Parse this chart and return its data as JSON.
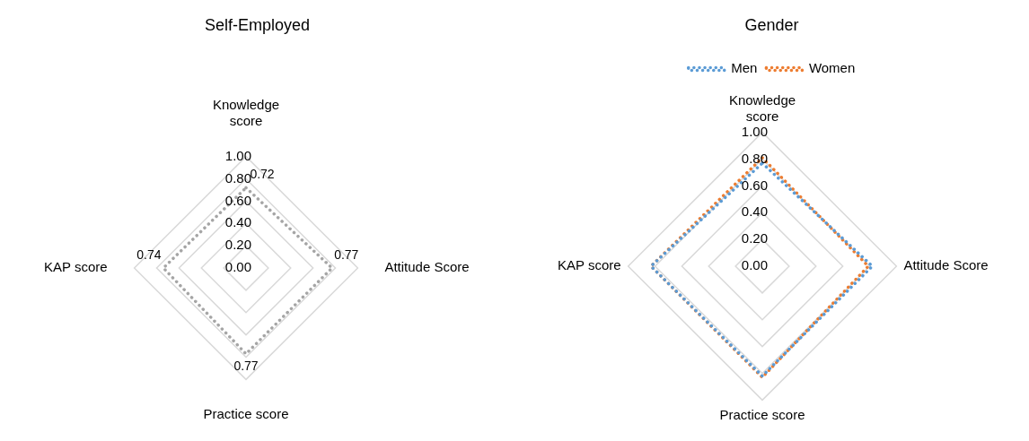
{
  "chart_data": [
    {
      "type": "radar",
      "title": "Self-Employed",
      "categories": [
        "Knowledge score",
        "Attitude Score",
        "Practice score",
        "KAP score"
      ],
      "ylim": [
        0,
        1
      ],
      "yticks": [
        {
          "value": 0,
          "label": "0.00"
        },
        {
          "value": 0.2,
          "label": "0.20"
        },
        {
          "value": 0.4,
          "label": "0.40"
        },
        {
          "value": 0.6,
          "label": "0.60"
        },
        {
          "value": 0.8,
          "label": "0.80"
        },
        {
          "value": 1,
          "label": "1.00"
        }
      ],
      "grid": true,
      "legend": false,
      "marker": "none",
      "line_style": "dotted",
      "data_labels": true,
      "series": [
        {
          "color": "#a5a5a5",
          "values": [
            0.72,
            0.77,
            0.77,
            0.74
          ]
        }
      ]
    },
    {
      "type": "radar",
      "title": "Gender",
      "categories": [
        "Knowledge score",
        "Attitude Score",
        "Practice score",
        "KAP score"
      ],
      "ylim": [
        0,
        1
      ],
      "yticks": [
        {
          "value": 0,
          "label": "0.00"
        },
        {
          "value": 0.2,
          "label": "0.20"
        },
        {
          "value": 0.4,
          "label": "0.40"
        },
        {
          "value": 0.6,
          "label": "0.60"
        },
        {
          "value": 0.8,
          "label": "0.80"
        },
        {
          "value": 1,
          "label": "1.00"
        }
      ],
      "grid": true,
      "legend": "top",
      "marker": "none",
      "line_style": "dotted",
      "series": [
        {
          "name": "Men",
          "color": "#5b9bd5",
          "values": [
            0.77,
            0.82,
            0.82,
            0.83
          ]
        },
        {
          "name": "Women",
          "color": "#ed7d31",
          "values": [
            0.81,
            0.79,
            0.83,
            0.83
          ]
        }
      ]
    }
  ]
}
